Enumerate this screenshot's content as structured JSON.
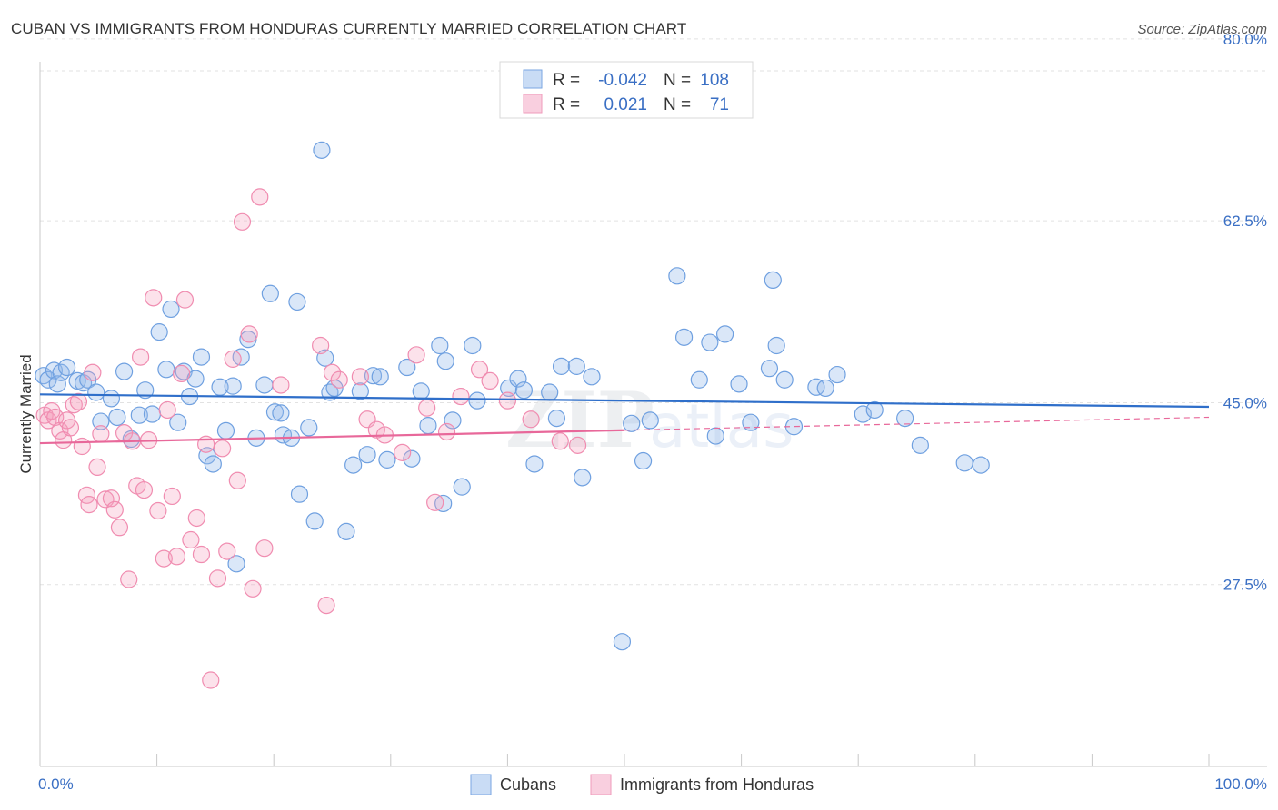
{
  "header": {
    "title": "CUBAN VS IMMIGRANTS FROM HONDURAS CURRENTLY MARRIED CORRELATION CHART",
    "source": "Source: ZipAtlas.com"
  },
  "watermark": {
    "zip": "ZIP",
    "atlas": "atlas"
  },
  "legend": {
    "r_label": "R =",
    "n_label": "N =",
    "rows": [
      {
        "r": "-0.042",
        "n": "108"
      },
      {
        "r": "0.021",
        "n": "71"
      }
    ]
  },
  "chart_data": {
    "type": "scatter",
    "title": "CUBAN VS IMMIGRANTS FROM HONDURAS CURRENTLY MARRIED CORRELATION CHART",
    "xlabel": "",
    "ylabel": "Currently Married",
    "xlim": [
      0,
      100
    ],
    "ylim": [
      10,
      82
    ],
    "x_tick_labels": [
      "0.0%",
      "100.0%"
    ],
    "y_ticks": [
      27.5,
      45.0,
      62.5,
      80.0
    ],
    "y_tick_labels": [
      "27.5%",
      "45.0%",
      "62.5%",
      "80.0%"
    ],
    "grid": true,
    "colors": {
      "Cubans": "#6fa0e0",
      "Immigrants from Honduras": "#f08cb0",
      "cubans_line": "#2f6fca",
      "honduras_line": "#e8689a"
    },
    "series": [
      {
        "name": "Cubans",
        "trend": {
          "x": [
            0,
            100
          ],
          "y": [
            45.8,
            44.6
          ],
          "dashed_from": null
        },
        "points": [
          [
            0.3,
            47.6
          ],
          [
            0.7,
            47.2
          ],
          [
            1.2,
            48.1
          ],
          [
            1.5,
            46.8
          ],
          [
            1.8,
            47.9
          ],
          [
            2.3,
            48.4
          ],
          [
            3.2,
            47.1
          ],
          [
            3.7,
            46.9
          ],
          [
            4.1,
            47.2
          ],
          [
            4.8,
            46.0
          ],
          [
            5.2,
            43.2
          ],
          [
            6.1,
            45.4
          ],
          [
            6.6,
            43.6
          ],
          [
            7.2,
            48.0
          ],
          [
            7.8,
            41.5
          ],
          [
            8.5,
            43.8
          ],
          [
            9.0,
            46.2
          ],
          [
            9.6,
            43.9
          ],
          [
            10.2,
            51.8
          ],
          [
            10.8,
            48.2
          ],
          [
            11.2,
            54.0
          ],
          [
            11.8,
            43.1
          ],
          [
            12.3,
            48.0
          ],
          [
            12.8,
            45.6
          ],
          [
            13.3,
            47.3
          ],
          [
            13.8,
            49.4
          ],
          [
            14.3,
            39.9
          ],
          [
            14.8,
            39.1
          ],
          [
            15.4,
            46.5
          ],
          [
            15.9,
            42.3
          ],
          [
            16.5,
            46.6
          ],
          [
            16.8,
            29.5
          ],
          [
            17.2,
            49.4
          ],
          [
            17.8,
            51.1
          ],
          [
            18.5,
            41.6
          ],
          [
            19.2,
            46.7
          ],
          [
            19.7,
            55.5
          ],
          [
            20.1,
            44.1
          ],
          [
            20.6,
            44.0
          ],
          [
            20.8,
            41.9
          ],
          [
            21.5,
            41.6
          ],
          [
            22.0,
            54.7
          ],
          [
            22.2,
            36.2
          ],
          [
            23.0,
            42.6
          ],
          [
            23.5,
            33.6
          ],
          [
            24.1,
            69.3
          ],
          [
            24.4,
            49.3
          ],
          [
            24.8,
            46.0
          ],
          [
            25.2,
            46.4
          ],
          [
            26.2,
            32.6
          ],
          [
            26.8,
            39.0
          ],
          [
            27.4,
            46.1
          ],
          [
            28.0,
            40.0
          ],
          [
            28.5,
            47.6
          ],
          [
            29.1,
            47.5
          ],
          [
            29.7,
            39.5
          ],
          [
            31.4,
            48.4
          ],
          [
            31.8,
            39.6
          ],
          [
            32.6,
            46.1
          ],
          [
            33.2,
            42.8
          ],
          [
            34.2,
            50.5
          ],
          [
            34.5,
            35.3
          ],
          [
            34.7,
            49.0
          ],
          [
            35.3,
            43.3
          ],
          [
            36.1,
            36.9
          ],
          [
            37.0,
            50.5
          ],
          [
            37.4,
            45.2
          ],
          [
            40.1,
            46.4
          ],
          [
            40.9,
            47.3
          ],
          [
            41.4,
            46.2
          ],
          [
            42.3,
            39.1
          ],
          [
            43.6,
            46.0
          ],
          [
            44.2,
            43.5
          ],
          [
            44.6,
            48.5
          ],
          [
            45.9,
            48.5
          ],
          [
            46.4,
            37.8
          ],
          [
            47.2,
            47.5
          ],
          [
            49.8,
            22.0
          ],
          [
            50.6,
            43.0
          ],
          [
            51.6,
            39.4
          ],
          [
            52.2,
            43.3
          ],
          [
            54.5,
            57.2
          ],
          [
            55.1,
            51.3
          ],
          [
            56.4,
            47.2
          ],
          [
            57.3,
            50.8
          ],
          [
            57.8,
            41.8
          ],
          [
            58.6,
            51.6
          ],
          [
            59.8,
            46.8
          ],
          [
            60.8,
            43.1
          ],
          [
            62.4,
            48.3
          ],
          [
            62.7,
            56.8
          ],
          [
            63.0,
            50.5
          ],
          [
            63.7,
            47.2
          ],
          [
            64.5,
            42.7
          ],
          [
            66.4,
            46.5
          ],
          [
            67.2,
            46.4
          ],
          [
            68.2,
            47.7
          ],
          [
            70.4,
            43.9
          ],
          [
            71.4,
            44.3
          ],
          [
            74.0,
            43.5
          ],
          [
            75.3,
            40.9
          ],
          [
            79.1,
            39.2
          ],
          [
            80.5,
            39.0
          ]
        ]
      },
      {
        "name": "Immigrants from Honduras",
        "trend": {
          "x": [
            0,
            100
          ],
          "y": [
            41.1,
            43.6
          ],
          "dashed_from": 50
        },
        "points": [
          [
            0.4,
            43.8
          ],
          [
            0.7,
            43.3
          ],
          [
            1.0,
            44.2
          ],
          [
            1.3,
            43.6
          ],
          [
            1.7,
            42.3
          ],
          [
            2.0,
            41.4
          ],
          [
            2.3,
            43.3
          ],
          [
            2.6,
            42.6
          ],
          [
            2.9,
            44.8
          ],
          [
            3.3,
            45.1
          ],
          [
            3.6,
            40.8
          ],
          [
            4.0,
            36.1
          ],
          [
            4.2,
            35.2
          ],
          [
            4.5,
            47.9
          ],
          [
            4.9,
            38.8
          ],
          [
            5.2,
            42.0
          ],
          [
            5.6,
            35.7
          ],
          [
            6.1,
            35.8
          ],
          [
            6.4,
            34.7
          ],
          [
            6.8,
            33.0
          ],
          [
            7.2,
            42.1
          ],
          [
            7.6,
            28.0
          ],
          [
            7.9,
            41.3
          ],
          [
            8.3,
            37.0
          ],
          [
            8.6,
            49.4
          ],
          [
            8.9,
            36.6
          ],
          [
            9.3,
            41.4
          ],
          [
            9.7,
            55.1
          ],
          [
            10.1,
            34.6
          ],
          [
            10.6,
            30.0
          ],
          [
            10.9,
            44.3
          ],
          [
            11.3,
            36.0
          ],
          [
            11.7,
            30.2
          ],
          [
            12.1,
            47.8
          ],
          [
            12.4,
            54.9
          ],
          [
            12.9,
            31.8
          ],
          [
            13.4,
            33.9
          ],
          [
            13.8,
            30.4
          ],
          [
            14.2,
            41.0
          ],
          [
            14.6,
            18.3
          ],
          [
            15.2,
            28.1
          ],
          [
            15.6,
            40.6
          ],
          [
            16.0,
            30.7
          ],
          [
            16.5,
            49.2
          ],
          [
            16.9,
            37.5
          ],
          [
            17.3,
            62.4
          ],
          [
            17.9,
            51.6
          ],
          [
            18.2,
            27.1
          ],
          [
            18.8,
            64.8
          ],
          [
            19.2,
            31.0
          ],
          [
            20.6,
            46.7
          ],
          [
            24.0,
            50.5
          ],
          [
            24.5,
            25.5
          ],
          [
            25.0,
            47.9
          ],
          [
            25.6,
            47.2
          ],
          [
            27.4,
            47.5
          ],
          [
            28.0,
            43.4
          ],
          [
            28.8,
            42.4
          ],
          [
            29.5,
            41.9
          ],
          [
            31.0,
            40.2
          ],
          [
            32.2,
            49.6
          ],
          [
            33.1,
            44.5
          ],
          [
            33.8,
            35.4
          ],
          [
            34.8,
            42.2
          ],
          [
            36.0,
            45.6
          ],
          [
            37.6,
            48.2
          ],
          [
            38.5,
            47.1
          ],
          [
            40.0,
            45.2
          ],
          [
            42.0,
            43.4
          ],
          [
            44.5,
            41.3
          ],
          [
            46.0,
            40.9
          ]
        ]
      }
    ]
  },
  "bottom_legend": [
    {
      "name": "Cubans"
    },
    {
      "name": "Immigrants from Honduras"
    }
  ]
}
